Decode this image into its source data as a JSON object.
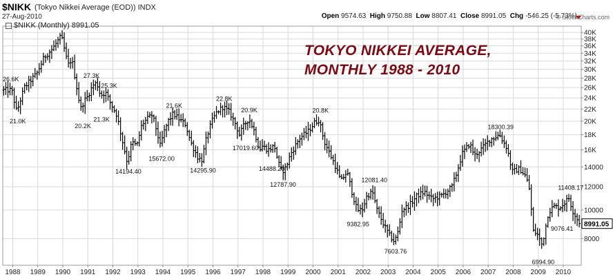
{
  "header": {
    "symbol": "$NIKK",
    "description": "(Tokyo Nikkei Average (EOD)) INDX",
    "date": "27-Aug-2010",
    "open_label": "Open",
    "open": "9574.63",
    "high_label": "High",
    "high": "9750.88",
    "low_label": "Low",
    "low": "8807.41",
    "close_label": "Close",
    "close": "8991.05",
    "chg_label": "Chg",
    "chg": "-546.25 (-5.73%)",
    "copyright": "© StockCharts.com",
    "legend": "$NIKK (Monthly) 8991.05",
    "colors": {
      "bars": "#000000",
      "title": "#7a0a14",
      "down": "#c00000"
    }
  },
  "chart_data": {
    "type": "ohlc",
    "title": "TOKYO NIKKEI AVERAGE,",
    "subtitle": "MONTHLY 1988 - 2010",
    "scale": "log",
    "ylim": [
      6500,
      42000
    ],
    "y_ticks": [
      "40K",
      "38K",
      "36K",
      "34K",
      "32K",
      "30K",
      "28K",
      "26K",
      "24K",
      "22K",
      "20K",
      "18K",
      "16K",
      "14000",
      "12000",
      "10000",
      "8000"
    ],
    "y_tick_values": [
      40000,
      38000,
      36000,
      34000,
      32000,
      30000,
      28000,
      26000,
      24000,
      22000,
      20000,
      18000,
      16000,
      14000,
      12000,
      10000,
      8000
    ],
    "x_ticks": [
      "1988",
      "1989",
      "1990",
      "1991",
      "1992",
      "1993",
      "1994",
      "1995",
      "1996",
      "1997",
      "1998",
      "1999",
      "2000",
      "2001",
      "2002",
      "2003",
      "2004",
      "2005",
      "2006",
      "2007",
      "2008",
      "2009",
      "2010"
    ],
    "xlim": [
      1987.6,
      2010.72
    ],
    "grid": true,
    "last_value_label": "8991.05",
    "last_value": 8991.05,
    "anchors": [
      [
        1988.0,
        25500
      ],
      [
        1988.2,
        21500
      ],
      [
        1988.5,
        26000
      ],
      [
        1988.75,
        27500
      ],
      [
        1989.0,
        29000
      ],
      [
        1989.3,
        33000
      ],
      [
        1989.6,
        35000
      ],
      [
        1989.98,
        38900
      ],
      [
        1990.25,
        31000
      ],
      [
        1990.4,
        32500
      ],
      [
        1990.75,
        22000
      ],
      [
        1990.9,
        23500
      ],
      [
        1991.0,
        24000
      ],
      [
        1991.25,
        26500
      ],
      [
        1991.4,
        27000
      ],
      [
        1991.55,
        24500
      ],
      [
        1991.75,
        25000
      ],
      [
        1991.95,
        23000
      ],
      [
        1992.2,
        21000
      ],
      [
        1992.4,
        17500
      ],
      [
        1992.62,
        14500
      ],
      [
        1992.8,
        17000
      ],
      [
        1993.0,
        16500
      ],
      [
        1993.2,
        19500
      ],
      [
        1993.45,
        20500
      ],
      [
        1993.62,
        21000
      ],
      [
        1993.8,
        18500
      ],
      [
        1993.93,
        16500
      ],
      [
        1994.1,
        18500
      ],
      [
        1994.25,
        20000
      ],
      [
        1994.45,
        21200
      ],
      [
        1994.7,
        20300
      ],
      [
        1994.95,
        19500
      ],
      [
        1995.15,
        17000
      ],
      [
        1995.45,
        15000
      ],
      [
        1995.6,
        14800
      ],
      [
        1995.8,
        17800
      ],
      [
        1996.0,
        20000
      ],
      [
        1996.2,
        21500
      ],
      [
        1996.45,
        22400
      ],
      [
        1996.7,
        21500
      ],
      [
        1996.95,
        19500
      ],
      [
        1997.1,
        18000
      ],
      [
        1997.3,
        19500
      ],
      [
        1997.48,
        20400
      ],
      [
        1997.7,
        18500
      ],
      [
        1997.9,
        16000
      ],
      [
        1998.0,
        16500
      ],
      [
        1998.25,
        16000
      ],
      [
        1998.5,
        16500
      ],
      [
        1998.65,
        14500
      ],
      [
        1998.8,
        13500
      ],
      [
        1998.95,
        13900
      ],
      [
        1999.15,
        15500
      ],
      [
        1999.5,
        17500
      ],
      [
        1999.85,
        18500
      ],
      [
        2000.1,
        19800
      ],
      [
        2000.28,
        20200
      ],
      [
        2000.5,
        17000
      ],
      [
        2000.95,
        14000
      ],
      [
        2001.15,
        12500
      ],
      [
        2001.4,
        13500
      ],
      [
        2001.6,
        11500
      ],
      [
        2001.8,
        10000
      ],
      [
        2002.0,
        10000
      ],
      [
        2002.2,
        11200
      ],
      [
        2002.42,
        11500
      ],
      [
        2002.6,
        10000
      ],
      [
        2002.9,
        8800
      ],
      [
        2003.1,
        8200
      ],
      [
        2003.3,
        7800
      ],
      [
        2003.45,
        8500
      ],
      [
        2003.6,
        10000
      ],
      [
        2003.9,
        10400
      ],
      [
        2004.2,
        11200
      ],
      [
        2004.5,
        11500
      ],
      [
        2004.8,
        10900
      ],
      [
        2005.2,
        11200
      ],
      [
        2005.6,
        12000
      ],
      [
        2005.8,
        13500
      ],
      [
        2006.0,
        15500
      ],
      [
        2006.3,
        16800
      ],
      [
        2006.5,
        15300
      ],
      [
        2006.8,
        16200
      ],
      [
        2007.1,
        17300
      ],
      [
        2007.5,
        18000
      ],
      [
        2007.62,
        17200
      ],
      [
        2007.8,
        16200
      ],
      [
        2008.0,
        13500
      ],
      [
        2008.3,
        13800
      ],
      [
        2008.55,
        13000
      ],
      [
        2008.72,
        11500
      ],
      [
        2008.82,
        8500
      ],
      [
        2009.0,
        8300
      ],
      [
        2009.2,
        7600
      ],
      [
        2009.45,
        9800
      ],
      [
        2009.65,
        10300
      ],
      [
        2009.9,
        10200
      ],
      [
        2010.05,
        10500
      ],
      [
        2010.28,
        11000
      ],
      [
        2010.4,
        10000
      ],
      [
        2010.55,
        9500
      ],
      [
        2010.65,
        9100
      ]
    ],
    "annotations": [
      {
        "text": "26.6K",
        "x": 1987.6,
        "y": 26600,
        "pos": "above"
      },
      {
        "text": "21.0K",
        "x": 1988.2,
        "y": 21000,
        "pos": "below"
      },
      {
        "text": "27.3K",
        "x": 1991.15,
        "y": 27300,
        "pos": "above"
      },
      {
        "text": "20.2K",
        "x": 1990.8,
        "y": 20200,
        "pos": "below"
      },
      {
        "text": "25.3K",
        "x": 1991.85,
        "y": 25300,
        "pos": "above"
      },
      {
        "text": "21.3K",
        "x": 1991.55,
        "y": 21300,
        "pos": "below"
      },
      {
        "text": "14194.40",
        "x": 1992.62,
        "y": 14194,
        "pos": "below"
      },
      {
        "text": "21.6K",
        "x": 1994.45,
        "y": 21600,
        "pos": "above"
      },
      {
        "text": "15672.00",
        "x": 1993.95,
        "y": 15672,
        "pos": "below"
      },
      {
        "text": "14295.90",
        "x": 1995.6,
        "y": 14296,
        "pos": "below"
      },
      {
        "text": "22.8K",
        "x": 1996.45,
        "y": 22800,
        "pos": "above"
      },
      {
        "text": "20.9K",
        "x": 1997.45,
        "y": 20900,
        "pos": "above"
      },
      {
        "text": "17019.60",
        "x": 1997.3,
        "y": 17020,
        "pos": "below"
      },
      {
        "text": "14488.20",
        "x": 1998.35,
        "y": 14488,
        "pos": "below"
      },
      {
        "text": "12787.90",
        "x": 1998.8,
        "y": 12788,
        "pos": "below"
      },
      {
        "text": "20.8K",
        "x": 2000.3,
        "y": 20800,
        "pos": "above"
      },
      {
        "text": "12081.40",
        "x": 2002.45,
        "y": 12081,
        "pos": "above"
      },
      {
        "text": "9382.95",
        "x": 2001.8,
        "y": 9383,
        "pos": "below"
      },
      {
        "text": "7603.76",
        "x": 2003.3,
        "y": 7604,
        "pos": "below"
      },
      {
        "text": "18300.39",
        "x": 2007.5,
        "y": 18300,
        "pos": "above"
      },
      {
        "text": "6994.90",
        "x": 2009.2,
        "y": 6995,
        "pos": "below"
      },
      {
        "text": "11408.17",
        "x": 2010.3,
        "y": 11408,
        "pos": "above"
      },
      {
        "text": "9076.41",
        "x": 2009.95,
        "y": 9076,
        "pos": "below"
      }
    ]
  }
}
